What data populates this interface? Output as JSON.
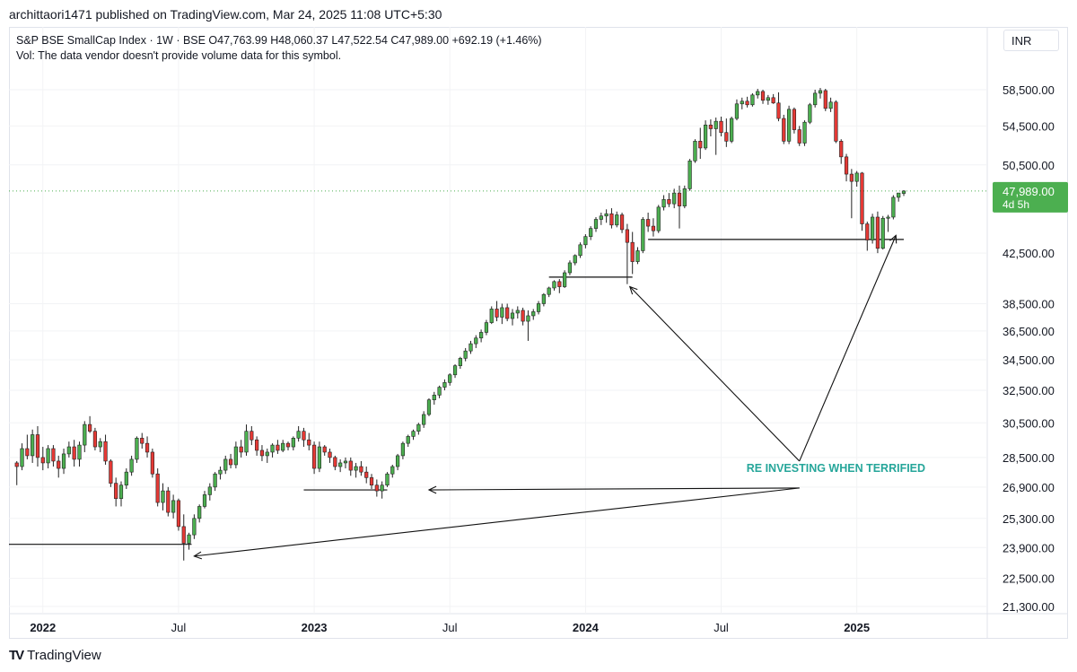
{
  "header": {
    "published": "archittaori1471 published on TradingView.com, Mar 24, 2025 11:08 UTC+5:30"
  },
  "legend": {
    "line1": "S&P BSE SmallCap Index · 1W · BSE  O47,763.99  H48,060.37  L47,522.54  C47,989.00  +692.19 (+1.46%)",
    "line2": "Vol: The data vendor doesn't provide volume data for this symbol."
  },
  "currency": "INR",
  "footer": {
    "brand": "TradingView"
  },
  "colors": {
    "up": "#4caf50",
    "down": "#e53935",
    "text": "#131722",
    "annotation": "#26a69a",
    "price_tag": "#4caf50"
  },
  "chart_data": {
    "type": "candlestick",
    "title": "S&P BSE SmallCap Index · 1W · BSE",
    "ohlc_last": {
      "open": 47763.99,
      "high": 48060.37,
      "low": 47522.54,
      "close": 47989.0,
      "change": 692.19,
      "change_pct": 1.46
    },
    "y_scale": "log",
    "ylim": [
      21000,
      60800
    ],
    "y_ticks": [
      {
        "v": 58500,
        "label": "58,500.00"
      },
      {
        "v": 54500,
        "label": "54,500.00"
      },
      {
        "v": 50500,
        "label": "50,500.00"
      },
      {
        "v": 42500,
        "label": "42,500.00"
      },
      {
        "v": 38500,
        "label": "38,500.00"
      },
      {
        "v": 36500,
        "label": "36,500.00"
      },
      {
        "v": 34500,
        "label": "34,500.00"
      },
      {
        "v": 32500,
        "label": "32,500.00"
      },
      {
        "v": 30500,
        "label": "30,500.00"
      },
      {
        "v": 28500,
        "label": "28,500.00"
      },
      {
        "v": 26900,
        "label": "26,900.00"
      },
      {
        "v": 25300,
        "label": "25,300.00"
      },
      {
        "v": 23900,
        "label": "23,900.00"
      },
      {
        "v": 22500,
        "label": "22,500.00"
      },
      {
        "v": 21300,
        "label": "21,300.00"
      }
    ],
    "last_price": {
      "value": 47989.0,
      "label": "47,989.00",
      "countdown": "4d 5h"
    },
    "x_ticks": [
      {
        "week": 5,
        "label": "2022",
        "bold": true
      },
      {
        "week": 31,
        "label": "Jul",
        "bold": false
      },
      {
        "week": 57,
        "label": "2023",
        "bold": true
      },
      {
        "week": 83,
        "label": "Jul",
        "bold": false
      },
      {
        "week": 109,
        "label": "2024",
        "bold": true
      },
      {
        "week": 135,
        "label": "Jul",
        "bold": false
      },
      {
        "week": 161,
        "label": "2025",
        "bold": true
      }
    ],
    "x_range_weeks": [
      -1.5,
      186
    ],
    "candles": [
      [
        28200,
        28300,
        27000,
        28000
      ],
      [
        28000,
        29300,
        27800,
        29000
      ],
      [
        29000,
        29800,
        28400,
        28600
      ],
      [
        28600,
        30100,
        28200,
        29800
      ],
      [
        29800,
        30300,
        28000,
        28500
      ],
      [
        28500,
        29100,
        27800,
        28200
      ],
      [
        28200,
        29200,
        27900,
        29000
      ],
      [
        29000,
        29200,
        28000,
        28300
      ],
      [
        28300,
        28600,
        27400,
        27900
      ],
      [
        27900,
        29000,
        27600,
        28700
      ],
      [
        28700,
        29400,
        28500,
        29100
      ],
      [
        29100,
        29500,
        28000,
        28400
      ],
      [
        28400,
        29400,
        28000,
        29200
      ],
      [
        29200,
        30600,
        28800,
        30400
      ],
      [
        30400,
        30900,
        29900,
        30000
      ],
      [
        30000,
        30200,
        28900,
        29100
      ],
      [
        29100,
        29600,
        28800,
        29400
      ],
      [
        29400,
        29800,
        28100,
        28300
      ],
      [
        28300,
        28400,
        26900,
        27100
      ],
      [
        27100,
        27400,
        25900,
        26300
      ],
      [
        26300,
        27200,
        25900,
        27000
      ],
      [
        27000,
        27900,
        26800,
        27700
      ],
      [
        27700,
        28600,
        27500,
        28400
      ],
      [
        28400,
        29700,
        28200,
        29600
      ],
      [
        29600,
        29900,
        29000,
        29300
      ],
      [
        29300,
        29700,
        28500,
        28800
      ],
      [
        28800,
        29000,
        27400,
        27600
      ],
      [
        27600,
        27900,
        25900,
        26100
      ],
      [
        26100,
        27100,
        25700,
        26700
      ],
      [
        26700,
        26900,
        25400,
        25600
      ],
      [
        25600,
        26500,
        25300,
        26200
      ],
      [
        26200,
        26300,
        24700,
        24900
      ],
      [
        24900,
        25500,
        23300,
        24100
      ],
      [
        24100,
        24600,
        23800,
        24500
      ],
      [
        24500,
        25500,
        24300,
        25300
      ],
      [
        25300,
        26000,
        25100,
        25900
      ],
      [
        25900,
        26700,
        25800,
        26500
      ],
      [
        26500,
        27100,
        26200,
        26900
      ],
      [
        26900,
        27700,
        26700,
        27600
      ],
      [
        27600,
        28000,
        27300,
        27800
      ],
      [
        27800,
        28600,
        27600,
        28400
      ],
      [
        28400,
        28700,
        27900,
        28100
      ],
      [
        28100,
        29400,
        27900,
        29100
      ],
      [
        29100,
        29500,
        28500,
        28800
      ],
      [
        28800,
        30400,
        28600,
        30000
      ],
      [
        30000,
        30300,
        29200,
        29500
      ],
      [
        29500,
        29700,
        28600,
        28900
      ],
      [
        28900,
        29200,
        28300,
        28600
      ],
      [
        28600,
        29000,
        28200,
        28800
      ],
      [
        28800,
        29300,
        28500,
        29200
      ],
      [
        29200,
        29500,
        28700,
        28900
      ],
      [
        28900,
        29500,
        28800,
        29300
      ],
      [
        29300,
        29400,
        28900,
        29100
      ],
      [
        29100,
        29700,
        28900,
        29600
      ],
      [
        29600,
        30300,
        29400,
        30000
      ],
      [
        30000,
        30200,
        29100,
        29500
      ],
      [
        29500,
        29900,
        28900,
        29200
      ],
      [
        29200,
        29400,
        27600,
        27900
      ],
      [
        27900,
        29400,
        27700,
        29100
      ],
      [
        29100,
        29200,
        28600,
        28800
      ],
      [
        28800,
        29000,
        28200,
        28500
      ],
      [
        28500,
        28600,
        27800,
        28000
      ],
      [
        28000,
        28400,
        27700,
        28200
      ],
      [
        28200,
        28500,
        27900,
        28300
      ],
      [
        28300,
        28500,
        27500,
        27800
      ],
      [
        27800,
        28200,
        27400,
        28000
      ],
      [
        28000,
        28300,
        27500,
        27700
      ],
      [
        27700,
        28000,
        27100,
        27400
      ],
      [
        27400,
        27600,
        26800,
        27000
      ],
      [
        27000,
        27300,
        26400,
        26700
      ],
      [
        26700,
        27200,
        26300,
        27000
      ],
      [
        27000,
        27700,
        26900,
        27600
      ],
      [
        27600,
        28100,
        27400,
        28000
      ],
      [
        28000,
        28700,
        27800,
        28600
      ],
      [
        28600,
        29400,
        28400,
        29300
      ],
      [
        29300,
        29800,
        29100,
        29700
      ],
      [
        29700,
        30100,
        29500,
        30000
      ],
      [
        30000,
        30500,
        29800,
        30400
      ],
      [
        30400,
        31200,
        30200,
        31000
      ],
      [
        31000,
        32000,
        30900,
        31900
      ],
      [
        31900,
        32400,
        31600,
        32200
      ],
      [
        32200,
        32800,
        32000,
        32700
      ],
      [
        32700,
        33200,
        32500,
        33000
      ],
      [
        33000,
        33600,
        32800,
        33500
      ],
      [
        33500,
        34200,
        33300,
        34100
      ],
      [
        34100,
        34700,
        33900,
        34600
      ],
      [
        34600,
        35300,
        34400,
        35100
      ],
      [
        35100,
        35800,
        34900,
        35600
      ],
      [
        35600,
        36200,
        35300,
        36000
      ],
      [
        36000,
        36600,
        35700,
        36400
      ],
      [
        36400,
        37300,
        36200,
        37100
      ],
      [
        37100,
        38300,
        37000,
        38100
      ],
      [
        38100,
        38700,
        37200,
        37500
      ],
      [
        37500,
        38500,
        37000,
        38200
      ],
      [
        38200,
        38500,
        37200,
        37400
      ],
      [
        37400,
        38100,
        36900,
        37800
      ],
      [
        37800,
        38300,
        37400,
        38000
      ],
      [
        38000,
        38200,
        36900,
        37200
      ],
      [
        37200,
        38000,
        35800,
        37600
      ],
      [
        37600,
        38100,
        37300,
        37900
      ],
      [
        37900,
        38700,
        37700,
        38500
      ],
      [
        38500,
        39300,
        38300,
        39200
      ],
      [
        39200,
        39800,
        39000,
        39700
      ],
      [
        39700,
        40300,
        39500,
        40200
      ],
      [
        40200,
        40400,
        39300,
        39800
      ],
      [
        39800,
        41100,
        39700,
        40900
      ],
      [
        40900,
        41900,
        40700,
        41700
      ],
      [
        41700,
        42400,
        41500,
        42300
      ],
      [
        42300,
        43400,
        42100,
        43200
      ],
      [
        43200,
        44100,
        42900,
        43900
      ],
      [
        43900,
        44800,
        43600,
        44600
      ],
      [
        44600,
        45600,
        44300,
        45400
      ],
      [
        45400,
        46000,
        44900,
        45700
      ],
      [
        45700,
        46300,
        45100,
        45900
      ],
      [
        45900,
        46400,
        44600,
        44900
      ],
      [
        44900,
        46100,
        44700,
        45800
      ],
      [
        45800,
        46000,
        44200,
        44500
      ],
      [
        44500,
        45000,
        40000,
        43400
      ],
      [
        43400,
        44300,
        40800,
        41800
      ],
      [
        41800,
        43000,
        41600,
        42700
      ],
      [
        42700,
        45600,
        42500,
        45400
      ],
      [
        45400,
        46000,
        44300,
        44800
      ],
      [
        44800,
        45500,
        43900,
        44400
      ],
      [
        44400,
        46700,
        44200,
        46500
      ],
      [
        46500,
        47600,
        46200,
        47200
      ],
      [
        47200,
        47800,
        46500,
        46800
      ],
      [
        46800,
        48200,
        46400,
        47800
      ],
      [
        47800,
        48500,
        44600,
        46600
      ],
      [
        46600,
        48500,
        46400,
        48200
      ],
      [
        48200,
        51100,
        48000,
        50900
      ],
      [
        50900,
        53100,
        50700,
        52900
      ],
      [
        52900,
        54300,
        51100,
        52200
      ],
      [
        52200,
        55100,
        52000,
        54600
      ],
      [
        54600,
        55200,
        53400,
        54200
      ],
      [
        54200,
        55400,
        51500,
        55000
      ],
      [
        55000,
        55500,
        53400,
        53800
      ],
      [
        53800,
        55300,
        52300,
        52900
      ],
      [
        52900,
        55500,
        52700,
        55300
      ],
      [
        55300,
        57400,
        55100,
        56900
      ],
      [
        56900,
        57600,
        56300,
        57200
      ],
      [
        57200,
        57700,
        56500,
        56800
      ],
      [
        56800,
        58100,
        56600,
        57900
      ],
      [
        57900,
        58600,
        57500,
        58300
      ],
      [
        58300,
        58500,
        56900,
        57300
      ],
      [
        57300,
        57900,
        56800,
        57600
      ],
      [
        57600,
        58000,
        56900,
        57000
      ],
      [
        57000,
        58200,
        55000,
        55300
      ],
      [
        55300,
        55700,
        52600,
        52900
      ],
      [
        52900,
        56700,
        52600,
        56300
      ],
      [
        56300,
        56500,
        53700,
        54100
      ],
      [
        54100,
        54500,
        52400,
        52700
      ],
      [
        52700,
        55100,
        52400,
        54900
      ],
      [
        54900,
        57000,
        54700,
        56800
      ],
      [
        56800,
        58500,
        56500,
        58100
      ],
      [
        58100,
        58700,
        57500,
        58400
      ],
      [
        58400,
        58600,
        56100,
        56400
      ],
      [
        56400,
        57600,
        56000,
        57100
      ],
      [
        57100,
        57300,
        52700,
        52900
      ],
      [
        52900,
        53100,
        50600,
        51300
      ],
      [
        51300,
        51600,
        48900,
        49600
      ],
      [
        49600,
        50100,
        45500,
        48900
      ],
      [
        48900,
        49900,
        48400,
        49700
      ],
      [
        49700,
        49800,
        44400,
        45000
      ],
      [
        45000,
        45200,
        42700,
        43600
      ],
      [
        43600,
        45900,
        43300,
        45600
      ],
      [
        45600,
        46100,
        42500,
        42900
      ],
      [
        42900,
        45700,
        42800,
        45500
      ],
      [
        45500,
        45800,
        44300,
        45600
      ],
      [
        45600,
        47600,
        45400,
        47400
      ],
      [
        47400,
        47700,
        47000,
        47800
      ],
      [
        47764,
        48060,
        47523,
        47989
      ]
    ],
    "annotations": [
      {
        "text": "RE INVESTING WHEN TERRIFIED",
        "color": "#26a69a"
      }
    ],
    "support_levels": [
      {
        "value": 24050,
        "from_week": -1.5,
        "to_week": 33.5
      },
      {
        "value": 26750,
        "from_week": 55,
        "to_week": 71
      },
      {
        "value": 40550,
        "from_week": 102,
        "to_week": 118
      },
      {
        "value": 43650,
        "from_week": 121,
        "to_week": 170
      }
    ],
    "grid": true
  }
}
